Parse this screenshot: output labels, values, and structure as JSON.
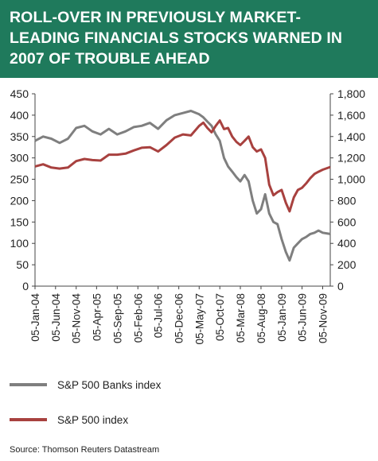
{
  "title": "ROLL-OVER IN PREVIOUSLY MARKET-LEADING FINANCIALS STOCKS WARNED IN 2007 OF TROUBLE AHEAD",
  "colors": {
    "header_bg": "#1f7a5c",
    "banks": "#7f7f7f",
    "sp500": "#a8413f"
  },
  "legend": [
    {
      "label": "S&P 500 Banks index",
      "color": "#7f7f7f"
    },
    {
      "label": "S&P 500 index",
      "color": "#a8413f"
    }
  ],
  "source": "Source: Thomson Reuters Datastream",
  "chart_data": {
    "type": "line",
    "x_tick_labels": [
      "05-Jan-04",
      "05-Jun-04",
      "05-Nov-04",
      "05-Apr-05",
      "05-Sep-05",
      "05-Feb-06",
      "05-Jul-06",
      "05-Dec-06",
      "05-May-07",
      "05-Oct-07",
      "05-Mar-08",
      "05-Aug-08",
      "05-Jan-09",
      "05-Jun-09",
      "05-Nov-09"
    ],
    "y_left": {
      "ticks": [
        0,
        50,
        100,
        150,
        200,
        250,
        300,
        350,
        400,
        450
      ],
      "range": [
        0,
        450
      ]
    },
    "y_right": {
      "ticks": [
        "0",
        "200",
        "400",
        "600",
        "800",
        "1,000",
        "1,200",
        "1,400",
        "1,600",
        "1,800"
      ],
      "range": [
        0,
        1800
      ]
    },
    "grid": false,
    "series": [
      {
        "name": "S&P 500 Banks index",
        "axis": "left",
        "x": [
          "2004-01-05",
          "2004-03-05",
          "2004-05-05",
          "2004-07-05",
          "2004-09-05",
          "2004-11-05",
          "2005-01-05",
          "2005-03-05",
          "2005-05-05",
          "2005-07-05",
          "2005-09-05",
          "2005-11-05",
          "2006-01-05",
          "2006-03-05",
          "2006-05-05",
          "2006-07-05",
          "2006-09-05",
          "2006-11-05",
          "2007-01-05",
          "2007-03-05",
          "2007-05-05",
          "2007-06-05",
          "2007-07-05",
          "2007-08-05",
          "2007-09-05",
          "2007-10-05",
          "2007-11-05",
          "2007-12-05",
          "2008-01-05",
          "2008-02-05",
          "2008-03-05",
          "2008-04-05",
          "2008-05-05",
          "2008-06-05",
          "2008-07-05",
          "2008-08-05",
          "2008-09-05",
          "2008-10-05",
          "2008-11-05",
          "2008-12-05",
          "2009-01-05",
          "2009-02-05",
          "2009-03-05",
          "2009-04-05",
          "2009-05-05",
          "2009-06-05",
          "2009-07-05",
          "2009-08-05",
          "2009-09-05",
          "2009-10-05",
          "2009-11-05",
          "2009-12-31"
        ],
        "values": [
          340,
          350,
          345,
          335,
          345,
          370,
          375,
          362,
          355,
          368,
          355,
          362,
          372,
          375,
          382,
          368,
          388,
          400,
          405,
          410,
          402,
          395,
          385,
          375,
          355,
          340,
          300,
          280,
          268,
          255,
          245,
          260,
          245,
          200,
          170,
          180,
          215,
          170,
          150,
          145,
          110,
          80,
          60,
          90,
          100,
          110,
          115,
          122,
          125,
          130,
          125,
          122
        ]
      },
      {
        "name": "S&P 500 index",
        "axis": "right",
        "x": [
          "2004-01-05",
          "2004-03-05",
          "2004-05-05",
          "2004-07-05",
          "2004-09-05",
          "2004-11-05",
          "2005-01-05",
          "2005-03-05",
          "2005-05-05",
          "2005-07-05",
          "2005-09-05",
          "2005-11-05",
          "2006-01-05",
          "2006-03-05",
          "2006-05-05",
          "2006-07-05",
          "2006-09-05",
          "2006-11-05",
          "2007-01-05",
          "2007-03-05",
          "2007-05-05",
          "2007-06-05",
          "2007-07-05",
          "2007-08-05",
          "2007-09-05",
          "2007-10-05",
          "2007-11-05",
          "2007-12-05",
          "2008-01-05",
          "2008-02-05",
          "2008-03-05",
          "2008-04-05",
          "2008-05-05",
          "2008-06-05",
          "2008-07-05",
          "2008-08-05",
          "2008-09-05",
          "2008-10-05",
          "2008-11-05",
          "2008-12-05",
          "2009-01-05",
          "2009-02-05",
          "2009-03-05",
          "2009-04-05",
          "2009-05-05",
          "2009-06-05",
          "2009-07-05",
          "2009-08-05",
          "2009-09-05",
          "2009-10-05",
          "2009-11-05",
          "2009-12-31"
        ],
        "values": [
          1120,
          1140,
          1110,
          1100,
          1110,
          1170,
          1190,
          1180,
          1175,
          1230,
          1230,
          1240,
          1270,
          1295,
          1300,
          1260,
          1320,
          1390,
          1420,
          1410,
          1500,
          1530,
          1480,
          1440,
          1500,
          1550,
          1470,
          1480,
          1400,
          1350,
          1320,
          1360,
          1400,
          1300,
          1260,
          1280,
          1200,
          950,
          850,
          880,
          900,
          780,
          700,
          830,
          900,
          920,
          960,
          1010,
          1050,
          1070,
          1090,
          1115
        ]
      }
    ]
  }
}
